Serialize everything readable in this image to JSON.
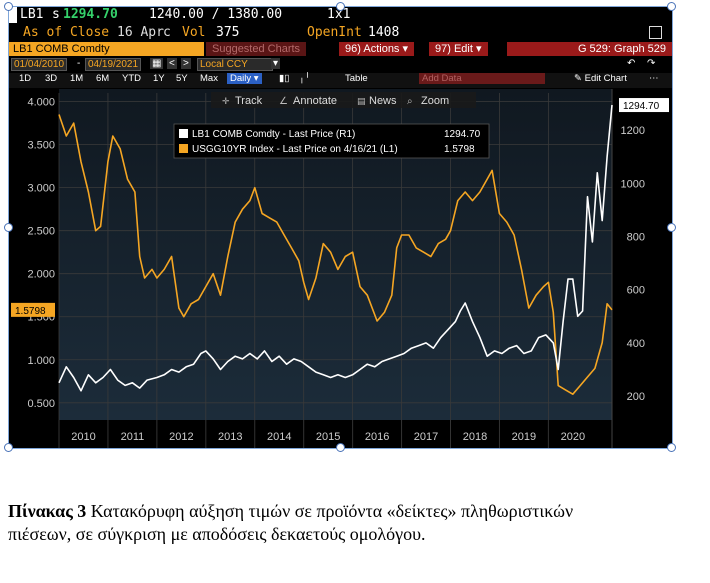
{
  "header": {
    "ticker": "LB1",
    "price_prefix": "s",
    "price": "1294.70",
    "range": "1240.00 / 1380.00",
    "size": "1x1",
    "as_of_close_label": "As of Close",
    "as_of_close_date": "16 Apr",
    "c_label": "c",
    "vol_label": "Vol",
    "vol_value": "375",
    "openint_label": "OpenInt",
    "openint_value": "1408"
  },
  "toolbar": {
    "security": "LB1 COMB Comdty",
    "suggested_charts": "Suggested Charts",
    "actions_num": "96)",
    "actions_label": "Actions",
    "edit_num": "97)",
    "edit_label": "Edit",
    "graph_label": "G 529: Graph 529",
    "start_date": "01/04/2010",
    "end_date": "04/19/2021",
    "currency": "Local CCY",
    "period_buttons": [
      "1D",
      "3D",
      "1M",
      "6M",
      "YTD",
      "1Y",
      "5Y",
      "Max"
    ],
    "frequency": "Daily",
    "table_label": "Table",
    "add_data": "Add Data",
    "edit_chart": "Edit Chart"
  },
  "chart_tools": {
    "track": "Track",
    "annotate": "Annotate",
    "news": "News",
    "zoom": "Zoom"
  },
  "legend": [
    {
      "label": "LB1 COMB Comdty - Last Price (R1)",
      "value": "1294.70",
      "color": "#ffffff"
    },
    {
      "label": "USGG10YR Index - Last Price on 4/16/21 (L1)",
      "value": "1.5798",
      "color": "#f5a623"
    }
  ],
  "colors": {
    "lumber": "#ffffff",
    "yield": "#f5a623",
    "background": "#000000",
    "grid": "#3a3a3a"
  },
  "chart_data": {
    "type": "line",
    "x_ticks": [
      "2010",
      "2011",
      "2012",
      "2013",
      "2014",
      "2015",
      "2016",
      "2017",
      "2018",
      "2019",
      "2020"
    ],
    "xlim": [
      2010.0,
      2021.3
    ],
    "left_axis": {
      "ticks": [
        "0.500",
        "1.000",
        "1.500",
        "2.000",
        "2.500",
        "3.000",
        "3.500",
        "4.000"
      ],
      "ylim": [
        0.3,
        4.1
      ]
    },
    "right_axis": {
      "ticks": [
        "200",
        "400",
        "600",
        "800",
        "1000",
        "1200"
      ],
      "ylim": [
        110,
        1340
      ]
    },
    "left_value_label": "1.5798",
    "right_value_label": "1294.70",
    "series": [
      {
        "name": "USGG10YR Index - Last Price on 4/16/21 (L1)",
        "axis": "left",
        "color": "#f5a623",
        "x": [
          2010.0,
          2010.15,
          2010.3,
          2010.45,
          2010.6,
          2010.75,
          2010.85,
          2011.0,
          2011.1,
          2011.25,
          2011.4,
          2011.55,
          2011.65,
          2011.75,
          2011.9,
          2012.0,
          2012.15,
          2012.3,
          2012.45,
          2012.55,
          2012.7,
          2012.85,
          2013.0,
          2013.15,
          2013.3,
          2013.45,
          2013.6,
          2013.75,
          2013.9,
          2014.0,
          2014.15,
          2014.3,
          2014.45,
          2014.6,
          2014.75,
          2014.9,
          2015.0,
          2015.1,
          2015.25,
          2015.4,
          2015.55,
          2015.7,
          2015.85,
          2016.0,
          2016.15,
          2016.3,
          2016.5,
          2016.65,
          2016.8,
          2016.9,
          2017.0,
          2017.15,
          2017.3,
          2017.45,
          2017.6,
          2017.75,
          2017.9,
          2018.0,
          2018.15,
          2018.3,
          2018.45,
          2018.6,
          2018.75,
          2018.85,
          2019.0,
          2019.15,
          2019.3,
          2019.45,
          2019.6,
          2019.75,
          2019.9,
          2020.0,
          2020.1,
          2020.2,
          2020.35,
          2020.5,
          2020.65,
          2020.8,
          2020.95,
          2021.1,
          2021.2,
          2021.3
        ],
        "y": [
          3.85,
          3.6,
          3.75,
          3.3,
          2.95,
          2.5,
          2.55,
          3.3,
          3.6,
          3.45,
          3.1,
          2.95,
          2.2,
          1.95,
          2.05,
          1.95,
          2.05,
          2.2,
          1.6,
          1.5,
          1.65,
          1.7,
          1.85,
          2.0,
          1.75,
          2.2,
          2.6,
          2.75,
          2.85,
          3.0,
          2.7,
          2.65,
          2.6,
          2.45,
          2.3,
          2.15,
          1.9,
          1.7,
          1.95,
          2.35,
          2.25,
          2.05,
          2.2,
          2.25,
          1.85,
          1.75,
          1.45,
          1.55,
          1.75,
          2.3,
          2.45,
          2.45,
          2.3,
          2.25,
          2.2,
          2.35,
          2.4,
          2.5,
          2.85,
          2.95,
          2.85,
          2.95,
          3.1,
          3.2,
          2.7,
          2.6,
          2.45,
          2.05,
          1.6,
          1.75,
          1.85,
          1.9,
          1.55,
          0.7,
          0.65,
          0.6,
          0.7,
          0.8,
          0.9,
          1.2,
          1.65,
          1.58
        ]
      },
      {
        "name": "LB1 COMB Comdty - Last Price (R1)",
        "axis": "right",
        "color": "#ffffff",
        "x": [
          2010.0,
          2010.15,
          2010.3,
          2010.45,
          2010.6,
          2010.75,
          2010.9,
          2011.05,
          2011.2,
          2011.35,
          2011.5,
          2011.65,
          2011.8,
          2012.0,
          2012.15,
          2012.3,
          2012.45,
          2012.6,
          2012.75,
          2012.9,
          2013.0,
          2013.15,
          2013.3,
          2013.45,
          2013.6,
          2013.75,
          2013.9,
          2014.05,
          2014.2,
          2014.35,
          2014.5,
          2014.65,
          2014.8,
          2014.95,
          2015.1,
          2015.25,
          2015.4,
          2015.55,
          2015.7,
          2015.85,
          2016.0,
          2016.15,
          2016.3,
          2016.45,
          2016.6,
          2016.75,
          2016.9,
          2017.05,
          2017.2,
          2017.35,
          2017.5,
          2017.65,
          2017.8,
          2017.95,
          2018.1,
          2018.2,
          2018.3,
          2018.45,
          2018.6,
          2018.75,
          2018.9,
          2019.05,
          2019.2,
          2019.35,
          2019.5,
          2019.65,
          2019.8,
          2019.95,
          2020.1,
          2020.2,
          2020.3,
          2020.4,
          2020.5,
          2020.6,
          2020.7,
          2020.8,
          2020.9,
          2021.0,
          2021.1,
          2021.2,
          2021.3
        ],
        "y": [
          250,
          310,
          270,
          220,
          280,
          250,
          270,
          300,
          260,
          240,
          250,
          230,
          260,
          270,
          280,
          300,
          290,
          310,
          320,
          360,
          370,
          340,
          300,
          330,
          350,
          340,
          360,
          340,
          370,
          330,
          350,
          320,
          340,
          330,
          310,
          290,
          280,
          270,
          280,
          270,
          280,
          300,
          320,
          310,
          330,
          340,
          350,
          360,
          380,
          390,
          400,
          380,
          420,
          450,
          480,
          520,
          550,
          480,
          420,
          350,
          370,
          360,
          380,
          390,
          360,
          370,
          420,
          430,
          400,
          300,
          480,
          640,
          640,
          500,
          520,
          950,
          780,
          1040,
          860,
          1100,
          1294.7
        ]
      }
    ]
  },
  "caption": {
    "label": "Πίνακας 3",
    "text": " Κατακόρυφη αύξηση τιμών σε προϊόντα «δείκτες» πληθωριστικών πιέσεων, σε σύγκριση με αποδόσεις δεκαετούς ομολόγου."
  }
}
